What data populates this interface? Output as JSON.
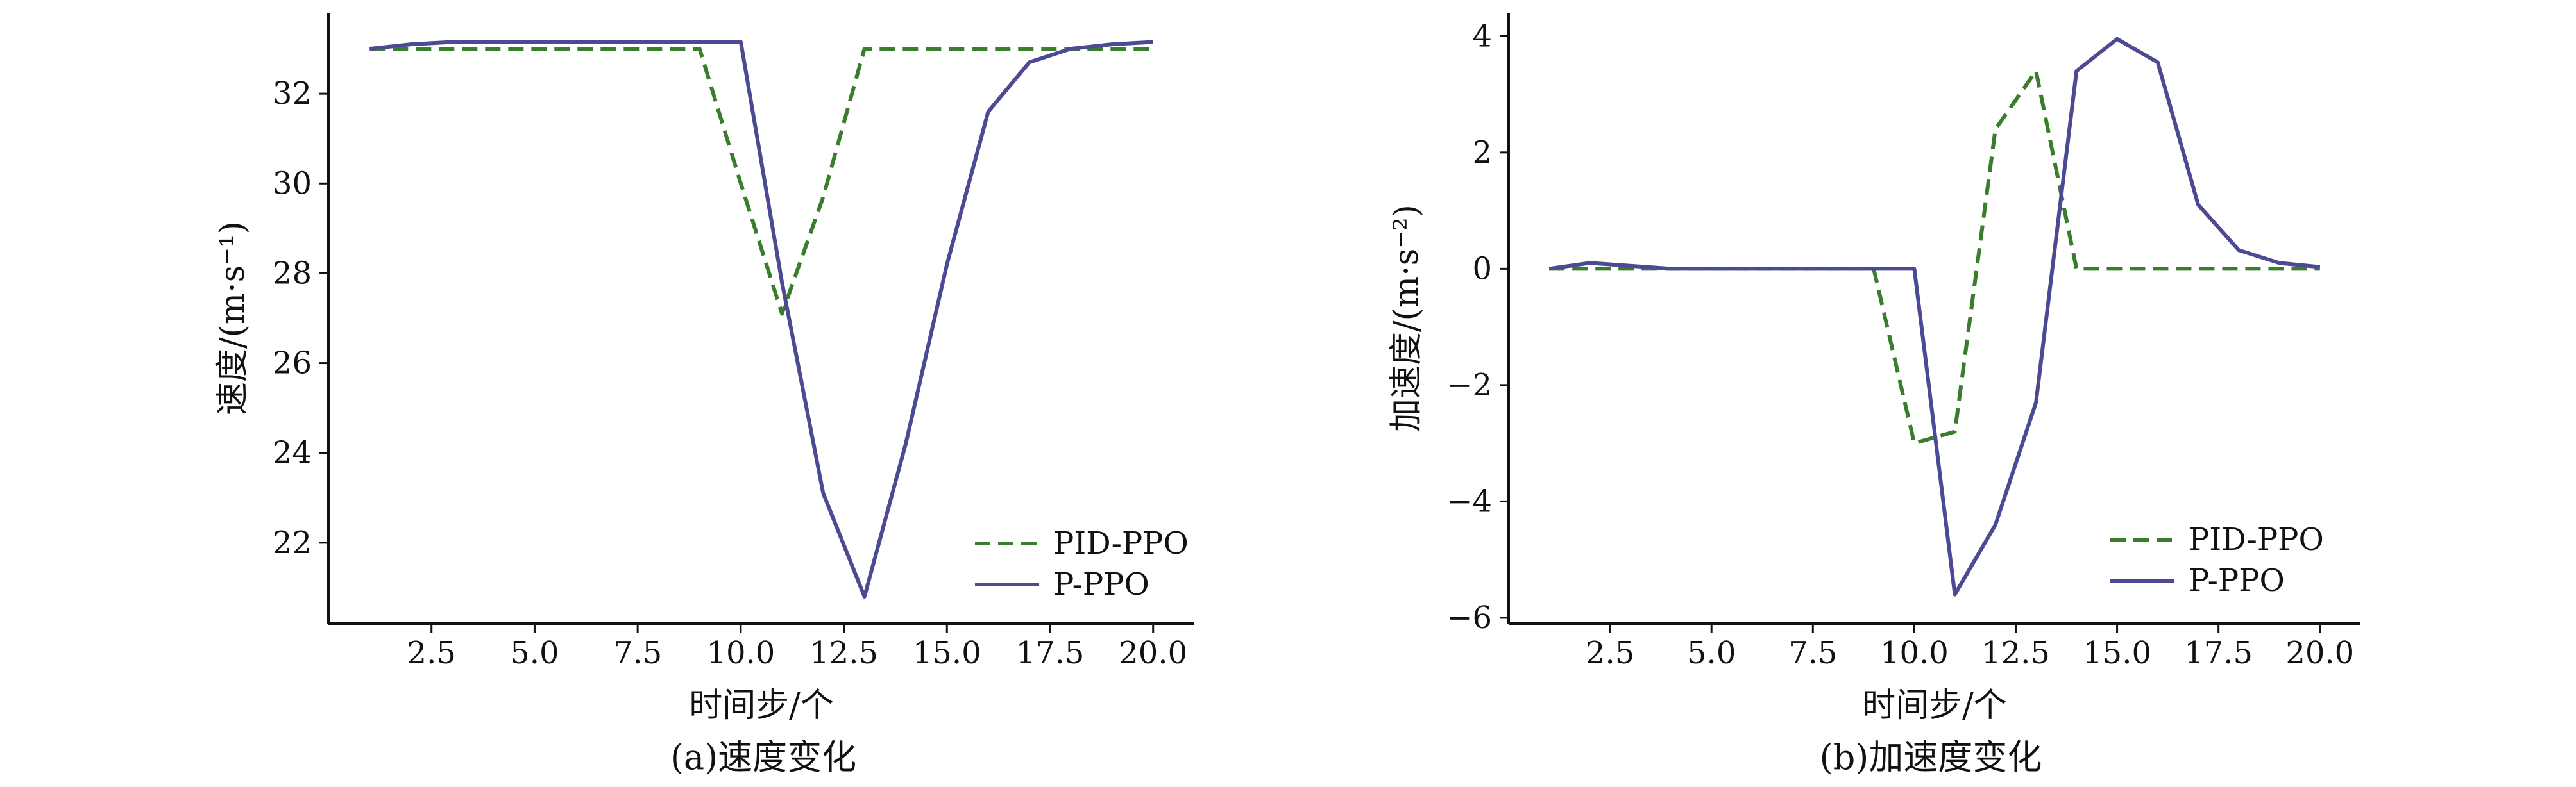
{
  "figure": {
    "captions": [
      "(a)速度变化",
      "(b)加速度变化"
    ]
  },
  "chart_data": [
    {
      "type": "line",
      "caption": "(a)速度变化",
      "xlabel": "时间步/个",
      "ylabel": "速度/(m·s⁻¹)",
      "xlim": [
        0,
        21
      ],
      "ylim": [
        20.2,
        33.8
      ],
      "xticks": [
        2.5,
        5.0,
        7.5,
        10.0,
        12.5,
        15.0,
        17.5,
        20.0
      ],
      "xtick_labels": [
        "2.5",
        "5.0",
        "7.5",
        "10.0",
        "12.5",
        "15.0",
        "17.5",
        "20.0"
      ],
      "yticks": [
        22,
        24,
        26,
        28,
        30,
        32
      ],
      "ytick_labels": [
        "22",
        "24",
        "26",
        "28",
        "30",
        "32"
      ],
      "legend_position": "bottom-right",
      "grid": false,
      "series": [
        {
          "name": "PID-PPO",
          "color": "#3a7d2c",
          "dash": "dashed",
          "x": [
            1,
            2,
            3,
            4,
            5,
            6,
            7,
            8,
            9,
            10,
            11,
            12,
            13,
            14,
            15,
            16,
            17,
            18,
            19,
            20
          ],
          "y": [
            33.0,
            33.0,
            33.0,
            33.0,
            33.0,
            33.0,
            33.0,
            33.0,
            33.0,
            30.0,
            27.1,
            29.7,
            33.0,
            33.0,
            33.0,
            33.0,
            33.0,
            33.0,
            33.0,
            33.0
          ]
        },
        {
          "name": "P-PPO",
          "color": "#4b4a93",
          "dash": "solid",
          "x": [
            1,
            2,
            3,
            4,
            5,
            6,
            7,
            8,
            9,
            10,
            11,
            12,
            13,
            14,
            15,
            16,
            17,
            18,
            19,
            20
          ],
          "y": [
            33.0,
            33.1,
            33.15,
            33.15,
            33.15,
            33.15,
            33.15,
            33.15,
            33.15,
            33.15,
            27.8,
            23.1,
            20.8,
            24.2,
            28.2,
            31.6,
            32.7,
            33.0,
            33.1,
            33.15
          ]
        }
      ]
    },
    {
      "type": "line",
      "caption": "(b)加速度变化",
      "xlabel": "时间步/个",
      "ylabel": "加速度/(m·s⁻²)",
      "xlim": [
        0,
        21
      ],
      "ylim": [
        -6.1,
        4.4
      ],
      "xticks": [
        2.5,
        5.0,
        7.5,
        10.0,
        12.5,
        15.0,
        17.5,
        20.0
      ],
      "xtick_labels": [
        "2.5",
        "5.0",
        "7.5",
        "10.0",
        "12.5",
        "15.0",
        "17.5",
        "20.0"
      ],
      "yticks": [
        -6,
        -4,
        -2,
        0,
        2,
        4
      ],
      "ytick_labels": [
        "−6",
        "−4",
        "−2",
        "0",
        "2",
        "4"
      ],
      "legend_position": "bottom-right",
      "grid": false,
      "series": [
        {
          "name": "PID-PPO",
          "color": "#3a7d2c",
          "dash": "dashed",
          "x": [
            1,
            2,
            3,
            4,
            5,
            6,
            7,
            8,
            9,
            10,
            11,
            12,
            13,
            14,
            15,
            16,
            17,
            18,
            19,
            20
          ],
          "y": [
            0,
            0,
            0,
            0,
            0,
            0,
            0,
            0,
            0,
            -3.0,
            -2.8,
            2.4,
            3.4,
            0,
            0,
            0,
            0,
            0,
            0,
            0
          ]
        },
        {
          "name": "P-PPO",
          "color": "#4b4a93",
          "dash": "solid",
          "x": [
            1,
            2,
            3,
            4,
            5,
            6,
            7,
            8,
            9,
            10,
            11,
            12,
            13,
            14,
            15,
            16,
            17,
            18,
            19,
            20
          ],
          "y": [
            0,
            0.1,
            0.05,
            0,
            0,
            0,
            0,
            0,
            0,
            0,
            -5.6,
            -4.4,
            -2.3,
            3.4,
            3.95,
            3.55,
            1.1,
            0.32,
            0.1,
            0.03
          ]
        }
      ]
    }
  ]
}
